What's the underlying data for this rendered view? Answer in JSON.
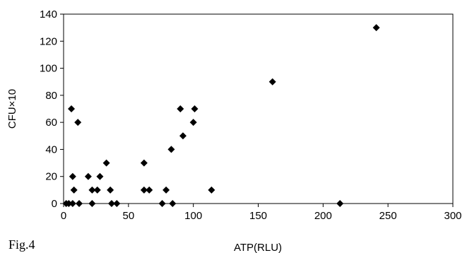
{
  "figure_label": "Fig.4",
  "chart_data": {
    "type": "scatter",
    "xlabel": "ATP(RLU)",
    "ylabel": "CFU×10",
    "xlim": [
      0,
      300
    ],
    "ylim": [
      0,
      140
    ],
    "x_ticks": [
      "0",
      "50",
      "100",
      "150",
      "200",
      "250",
      "300"
    ],
    "y_ticks": [
      "0",
      "20",
      "40",
      "60",
      "80",
      "100",
      "120",
      "140"
    ],
    "grid": false,
    "legend": "none",
    "marker": "diamond",
    "marker_color": "#000000",
    "points": [
      {
        "x": 2,
        "y": 0
      },
      {
        "x": 4,
        "y": 0
      },
      {
        "x": 7,
        "y": 0
      },
      {
        "x": 12,
        "y": 0
      },
      {
        "x": 22,
        "y": 0
      },
      {
        "x": 37,
        "y": 0
      },
      {
        "x": 41,
        "y": 0
      },
      {
        "x": 76,
        "y": 0
      },
      {
        "x": 84,
        "y": 0
      },
      {
        "x": 213,
        "y": 0
      },
      {
        "x": 8,
        "y": 10
      },
      {
        "x": 22,
        "y": 10
      },
      {
        "x": 26,
        "y": 10
      },
      {
        "x": 36,
        "y": 10
      },
      {
        "x": 62,
        "y": 10
      },
      {
        "x": 66,
        "y": 10
      },
      {
        "x": 79,
        "y": 10
      },
      {
        "x": 114,
        "y": 10
      },
      {
        "x": 7,
        "y": 20
      },
      {
        "x": 19,
        "y": 20
      },
      {
        "x": 28,
        "y": 20
      },
      {
        "x": 33,
        "y": 30
      },
      {
        "x": 62,
        "y": 30
      },
      {
        "x": 83,
        "y": 40
      },
      {
        "x": 92,
        "y": 50
      },
      {
        "x": 11,
        "y": 60
      },
      {
        "x": 100,
        "y": 60
      },
      {
        "x": 6,
        "y": 70
      },
      {
        "x": 90,
        "y": 70
      },
      {
        "x": 101,
        "y": 70
      },
      {
        "x": 161,
        "y": 90
      },
      {
        "x": 241,
        "y": 130
      }
    ]
  }
}
